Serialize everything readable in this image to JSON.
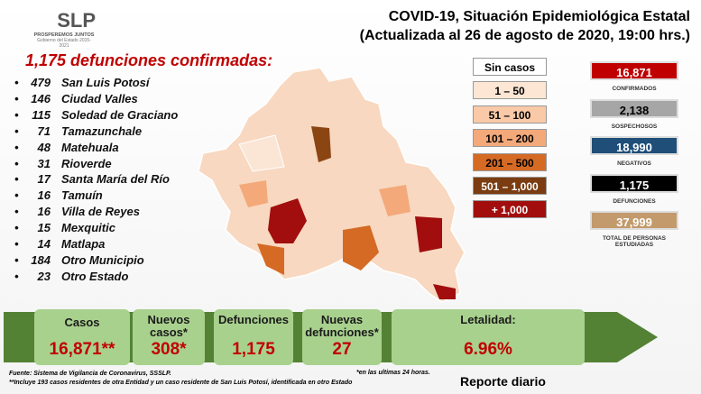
{
  "logo": {
    "mark": "SLP",
    "motto": "PROSPEREMOS JUNTOS",
    "government": "Gobierno del Estado 2015-2021"
  },
  "header": {
    "title": "COVID-19, Situación Epidemiológica Estatal",
    "subtitle": "(Actualizada al 26 de agosto de 2020, 19:00 hrs.)"
  },
  "deaths": {
    "heading": "1,175 defunciones confirmadas:",
    "rows": [
      {
        "count": 479,
        "place": "San Luis Potosí"
      },
      {
        "count": 146,
        "place": "Ciudad Valles"
      },
      {
        "count": 115,
        "place": "Soledad de Graciano"
      },
      {
        "count": 71,
        "place": "Tamazunchale"
      },
      {
        "count": 48,
        "place": "Matehuala"
      },
      {
        "count": 31,
        "place": "Rioverde"
      },
      {
        "count": 17,
        "place": "Santa María del Río"
      },
      {
        "count": 16,
        "place": "Tamuín"
      },
      {
        "count": 16,
        "place": "Villa de Reyes"
      },
      {
        "count": 15,
        "place": "Mexquitic"
      },
      {
        "count": 14,
        "place": "Matlapa"
      },
      {
        "count": 184,
        "place": "Otro Municipio"
      },
      {
        "count": 23,
        "place": "Otro Estado"
      }
    ]
  },
  "legend": [
    "Sin casos",
    "1 – 50",
    "51 – 100",
    "101 – 200",
    "201 – 500",
    "501 – 1,000",
    "+ 1,000"
  ],
  "stats": [
    {
      "value": "16,871",
      "label": "CONFIRMADOS"
    },
    {
      "value": "2,138",
      "label": "SOSPECHOSOS"
    },
    {
      "value": "18,990",
      "label": "NEGATIVOS"
    },
    {
      "value": "1,175",
      "label": "DEFUNCIONES"
    },
    {
      "value": "37,999",
      "label": "TOTAL DE PERSONAS ESTUDIADAS"
    }
  ],
  "summary": [
    {
      "label": "Casos",
      "value": "16,871**"
    },
    {
      "label": "Nuevos casos*",
      "value": "308*"
    },
    {
      "label": "Defunciones",
      "value": "1,175"
    },
    {
      "label": "Nuevas defunciones*",
      "value": "27"
    },
    {
      "label": "Letalidad:",
      "value": "6.96%"
    }
  ],
  "footer": {
    "source": "Fuente: Sistema de Vigilancia de Coronavirus, SSSLP.",
    "note": "**Incluye 193 casos residentes de otra Entidad y un caso residente de San Luis Potosí, identificada en otro Estado",
    "asterisk": "*en las ultimas 24 horas.",
    "report": "Reporte diario"
  }
}
